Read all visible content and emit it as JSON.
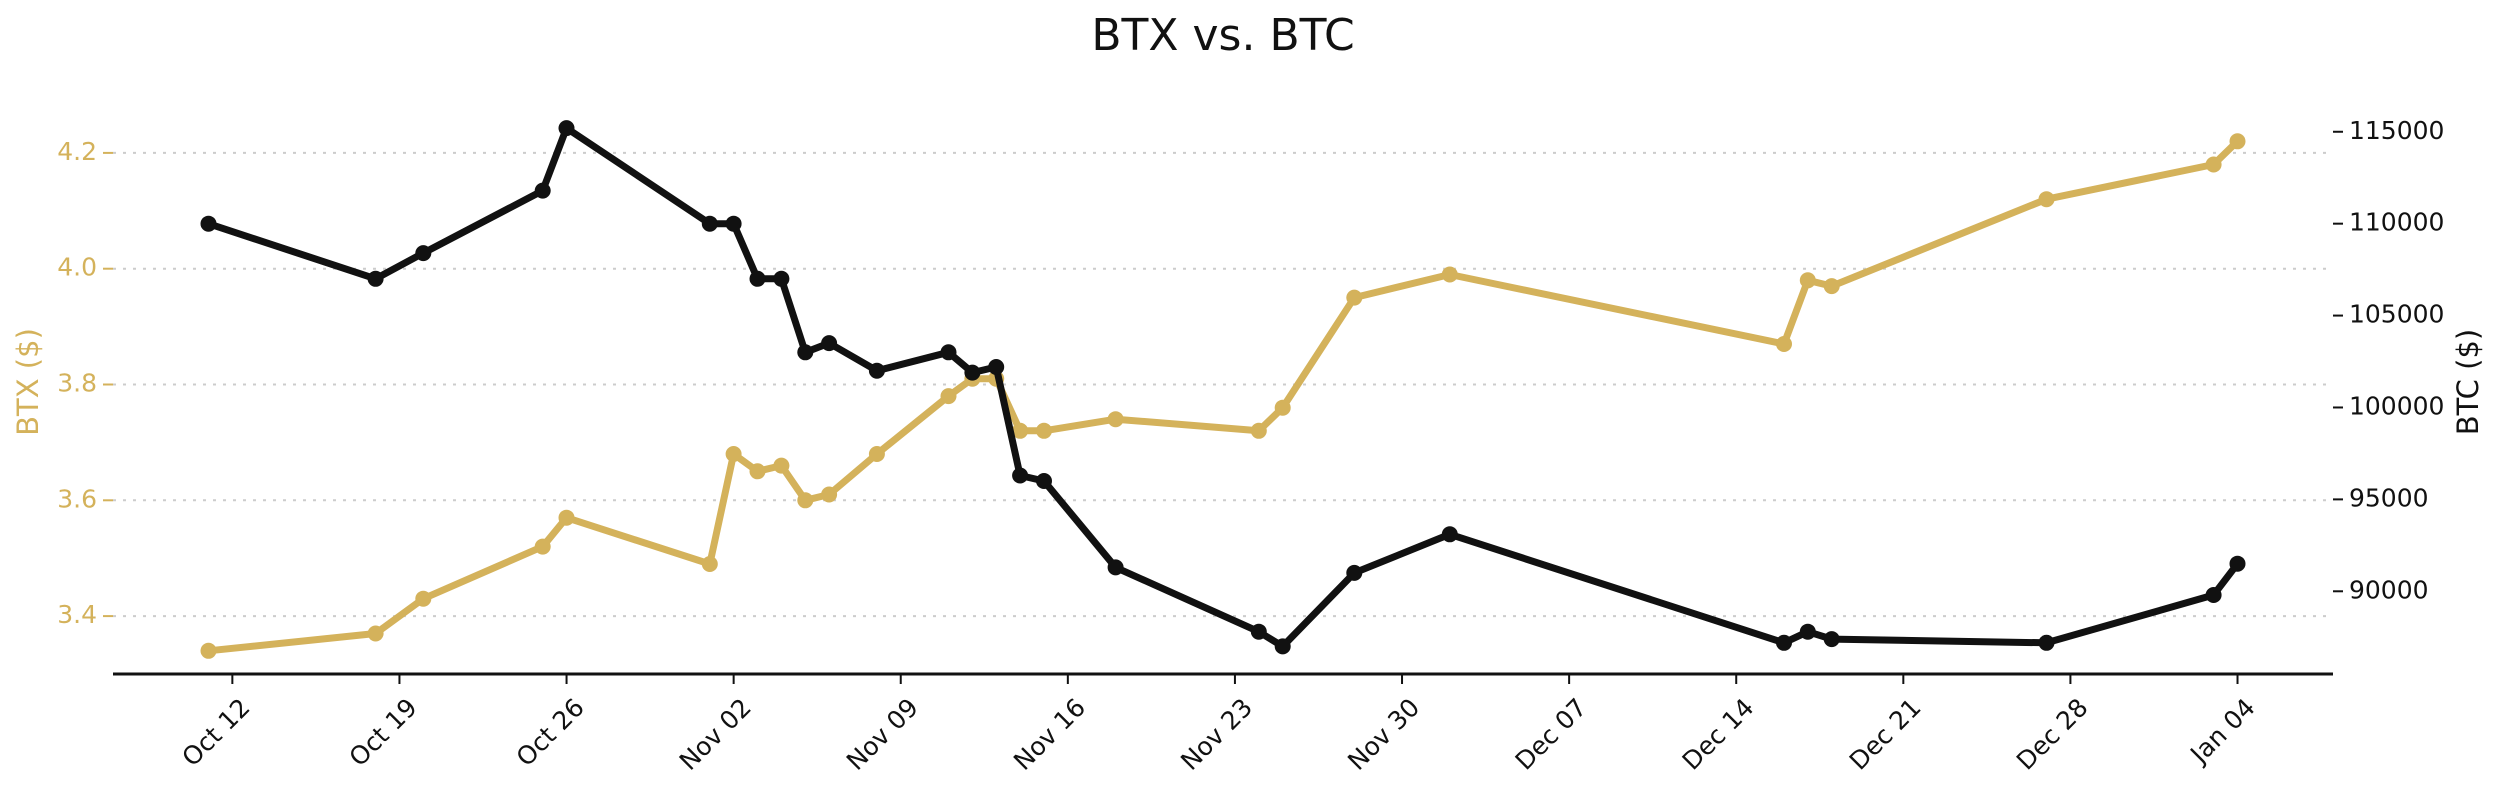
{
  "chart_data": {
    "type": "line",
    "title": "BTX vs. BTC",
    "xlabel": "",
    "x_tick_labels": [
      "Oct 12",
      "Oct 19",
      "Oct 26",
      "Nov 02",
      "Nov 09",
      "Nov 16",
      "Nov 23",
      "Nov 30",
      "Dec 07",
      "Dec 14",
      "Dec 21",
      "Dec 28",
      "Jan 04"
    ],
    "x_tick_dates": [
      "2025-10-12",
      "2025-10-19",
      "2025-10-26",
      "2025-11-02",
      "2025-11-09",
      "2025-11-16",
      "2025-11-23",
      "2025-11-30",
      "2025-12-07",
      "2025-12-14",
      "2025-12-21",
      "2025-12-28",
      "2026-01-04"
    ],
    "xlim": [
      "2025-10-07",
      "2026-01-08"
    ],
    "grid": "horizontal dotted",
    "y_left": {
      "label": "BTX ($)",
      "color": "#d4b25b",
      "range": [
        3.3,
        4.3
      ],
      "ticks": [
        "3.4",
        "3.6",
        "3.8",
        "4.0",
        "4.2"
      ]
    },
    "y_right": {
      "label": "BTC ($)",
      "color": "#111111",
      "range": [
        85500,
        117000
      ],
      "ticks": [
        "90000",
        "95000",
        "100000",
        "105000",
        "110000",
        "115000"
      ]
    },
    "series": [
      {
        "axis": "left",
        "color": "#d4b25b",
        "x": [
          "2025-10-11",
          "2025-10-18",
          "2025-10-20",
          "2025-10-25",
          "2025-10-26",
          "2025-11-01",
          "2025-11-02",
          "2025-11-03",
          "2025-11-04",
          "2025-11-05",
          "2025-11-06",
          "2025-11-08",
          "2025-11-11",
          "2025-11-12",
          "2025-11-13",
          "2025-11-14",
          "2025-11-15",
          "2025-11-18",
          "2025-11-24",
          "2025-11-25",
          "2025-11-28",
          "2025-12-02",
          "2025-12-16",
          "2025-12-17",
          "2025-12-18",
          "2025-12-27",
          "2026-01-03",
          "2026-01-04"
        ],
        "values": [
          3.34,
          3.37,
          3.43,
          3.52,
          3.57,
          3.49,
          3.68,
          3.65,
          3.66,
          3.6,
          3.61,
          3.68,
          3.78,
          3.81,
          3.81,
          3.72,
          3.72,
          3.74,
          3.72,
          3.76,
          3.95,
          3.99,
          3.87,
          3.98,
          3.97,
          4.12,
          4.18,
          4.22
        ]
      },
      {
        "axis": "right",
        "color": "#111111",
        "x": [
          "2025-10-11",
          "2025-10-18",
          "2025-10-20",
          "2025-10-25",
          "2025-10-26",
          "2025-11-01",
          "2025-11-02",
          "2025-11-03",
          "2025-11-04",
          "2025-11-05",
          "2025-11-06",
          "2025-11-08",
          "2025-11-11",
          "2025-11-12",
          "2025-11-13",
          "2025-11-14",
          "2025-11-15",
          "2025-11-18",
          "2025-11-24",
          "2025-11-25",
          "2025-11-28",
          "2025-12-02",
          "2025-12-16",
          "2025-12-17",
          "2025-12-18",
          "2025-12-27",
          "2026-01-03",
          "2026-01-04"
        ],
        "values": [
          110000,
          107000,
          108400,
          111800,
          115200,
          110000,
          110000,
          107000,
          107000,
          103000,
          103500,
          102000,
          103000,
          101900,
          102200,
          96300,
          96000,
          91300,
          87800,
          87000,
          91000,
          93100,
          87200,
          87800,
          87400,
          87200,
          89800,
          91500
        ]
      }
    ]
  }
}
